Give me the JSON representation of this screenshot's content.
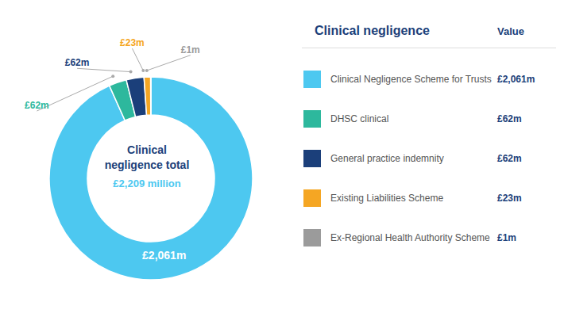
{
  "chart_data": {
    "type": "pie",
    "title": "Clinical negligence",
    "categories": [
      "Clinical Negligence Scheme for Trusts",
      "DHSC clinical",
      "General practice indemnity",
      "Existing Liabilities Scheme",
      "Ex-Regional Health Authority Scheme"
    ],
    "values": [
      2061,
      62,
      62,
      23,
      1
    ],
    "value_labels": [
      "£2,061m",
      "£62m",
      "£62m",
      "£23m",
      "£1m"
    ],
    "colors": [
      "#4DC8F0",
      "#2DB89D",
      "#1B3F7A",
      "#F5A623",
      "#9B9B9B"
    ],
    "data_labels": true,
    "legend": "right",
    "annotations": [
      {
        "text": "Clinical\nnegligence total",
        "color": "#1B3F7A"
      },
      {
        "text": "£2,209 million",
        "color": "#4DC8F0"
      },
      {
        "text": "Value",
        "color": "#1B3F7A"
      }
    ]
  }
}
